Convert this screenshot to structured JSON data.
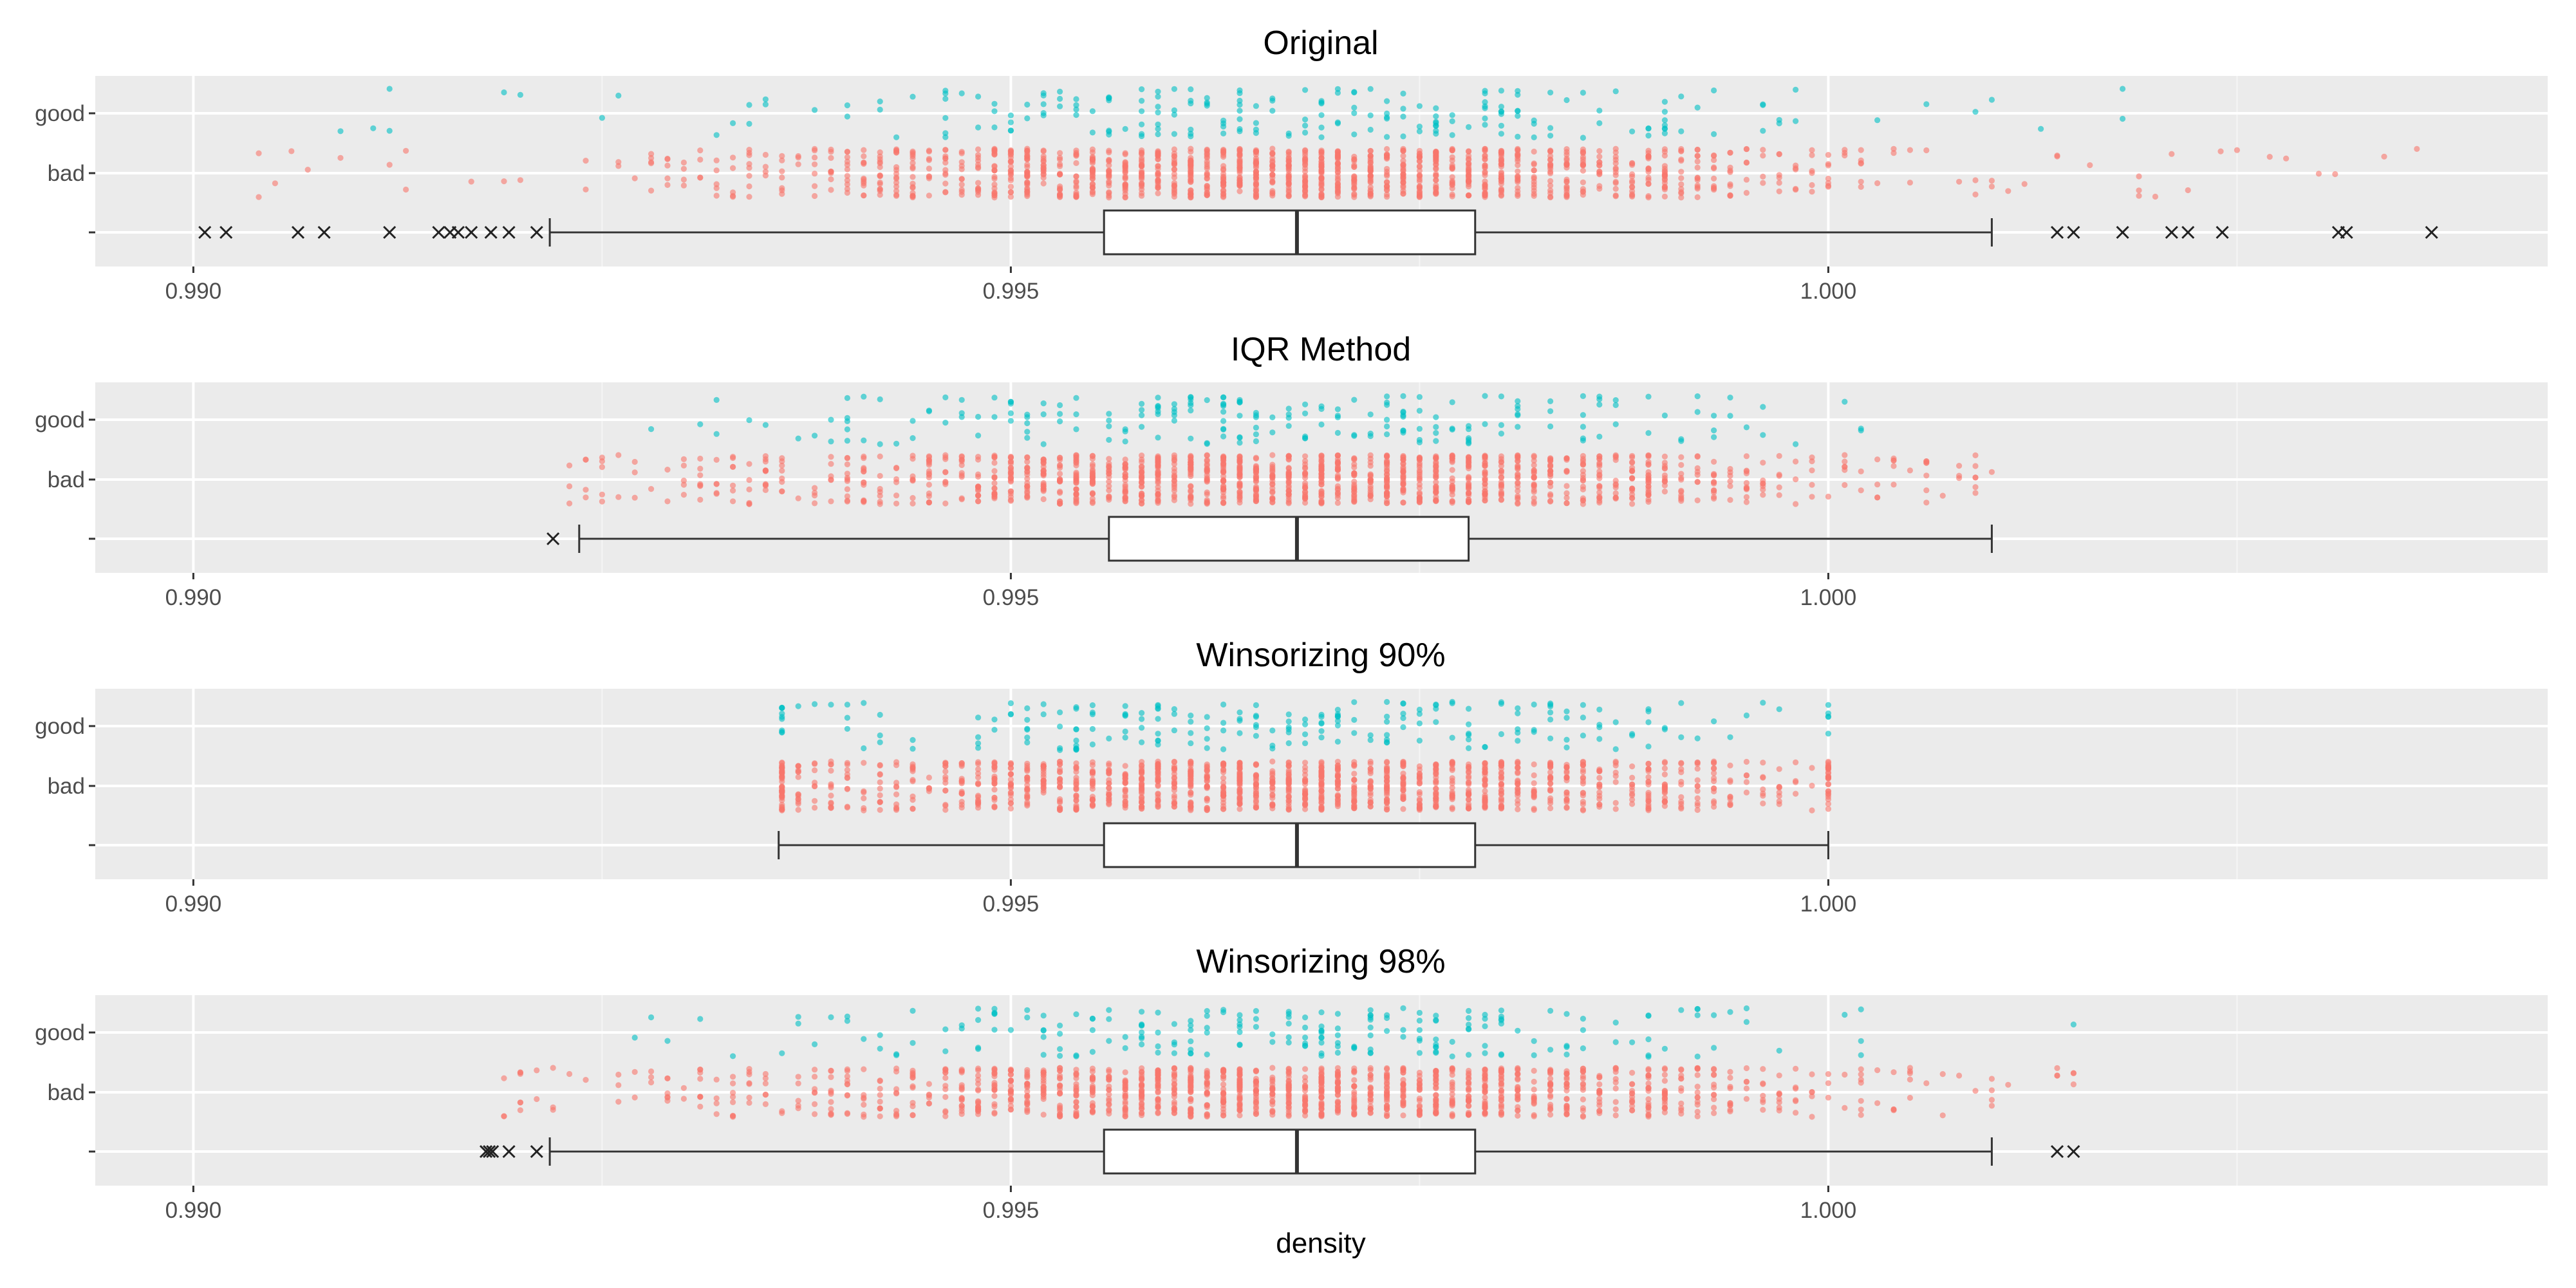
{
  "chart_data": {
    "type": "box-jitter",
    "xlabel": "density",
    "xlim": [
      0.9894,
      1.0044
    ],
    "x_ticks": [
      "0.990",
      "0.995",
      "1.000"
    ],
    "x_tick_values": [
      0.99,
      0.995,
      1.0
    ],
    "y_categories": [
      "good",
      "bad",
      ""
    ],
    "series_colors": {
      "good": "#00BFC4",
      "bad": "#F8766D"
    },
    "grid": "on",
    "legend": "none",
    "panels": [
      {
        "title": "Original",
        "box": {
          "whisker_low": 0.99218,
          "q1": 0.99557,
          "median": 0.99675,
          "q3": 0.99784,
          "whisker_high": 1.001
        },
        "outliers": [
          0.99007,
          0.9902,
          0.99064,
          0.9908,
          0.9912,
          0.9915,
          0.99157,
          0.99162,
          0.9917,
          0.99182,
          0.99193,
          0.9921,
          1.0014,
          1.0015,
          1.0018,
          1.0021,
          1.0022,
          1.00241,
          1.00312,
          1.00317,
          1.00369
        ],
        "jitter": {
          "good_range": [
            0.99064,
            1.00317
          ],
          "bad_range": [
            0.9902,
            1.00369
          ],
          "good_n": 217,
          "bad_n": 1382
        }
      },
      {
        "title": "IQR Method",
        "box": {
          "whisker_low": 0.99236,
          "q1": 0.9956,
          "median": 0.99675,
          "q3": 0.9978,
          "whisker_high": 1.001
        },
        "outliers": [
          0.9922
        ],
        "jitter": {
          "good_range": [
            0.99236,
            1.0004
          ],
          "bad_range": [
            0.9922,
            1.001
          ],
          "good_n": 210,
          "bad_n": 1364
        }
      },
      {
        "title": "Winsorizing 90%",
        "box": {
          "whisker_low": 0.99358,
          "q1": 0.99557,
          "median": 0.99675,
          "q3": 0.99784,
          "whisker_high": 1.0
        },
        "outliers": [],
        "jitter": {
          "good_range": [
            0.99358,
            1.0
          ],
          "bad_range": [
            0.99358,
            1.0
          ],
          "good_n": 217,
          "bad_n": 1382
        }
      },
      {
        "title": "Winsorizing 98%",
        "box": {
          "whisker_low": 0.99218,
          "q1": 0.99557,
          "median": 0.99675,
          "q3": 0.99784,
          "whisker_high": 1.001
        },
        "outliers": [
          0.99179,
          0.99181,
          0.99183,
          0.99193,
          0.9921,
          1.0014,
          1.0015
        ],
        "jitter": {
          "good_range": [
            0.99179,
            1.0015
          ],
          "bad_range": [
            0.99179,
            1.0015
          ],
          "good_n": 217,
          "bad_n": 1382
        }
      }
    ]
  }
}
